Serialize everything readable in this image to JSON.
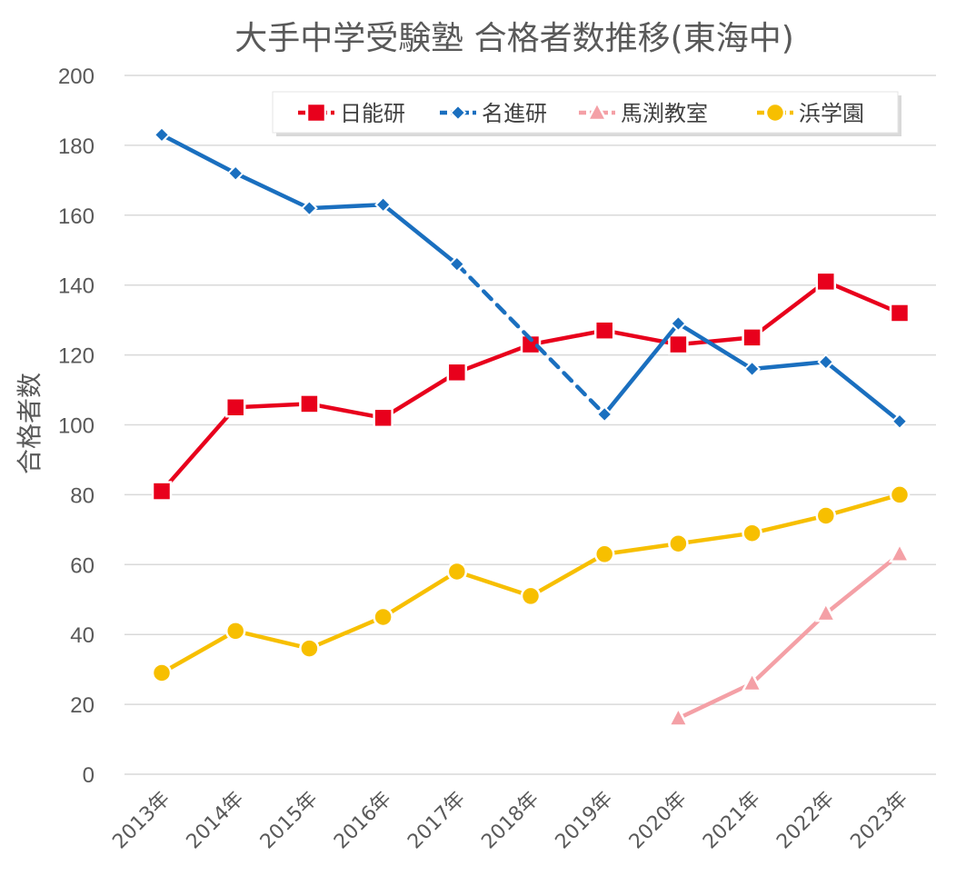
{
  "chart_data": {
    "type": "line",
    "title": "大手中学受験塾 合格者数推移(東海中)",
    "ylabel": "合格者数",
    "xlabel": "",
    "ylim": [
      0,
      200
    ],
    "ytick_step": 20,
    "grid": true,
    "legend_position": "top-right",
    "categories": [
      "2013年",
      "2014年",
      "2015年",
      "2016年",
      "2017年",
      "2018年",
      "2019年",
      "2020年",
      "2021年",
      "2022年",
      "2023年"
    ],
    "series": [
      {
        "name": "日能研",
        "color": "#e8001c",
        "marker": "square",
        "values": [
          81,
          105,
          106,
          102,
          115,
          123,
          127,
          123,
          125,
          141,
          132
        ]
      },
      {
        "name": "名進研",
        "color": "#1a6fbf",
        "marker": "diamond",
        "values": [
          183,
          172,
          162,
          163,
          146,
          null,
          103,
          129,
          116,
          118,
          101
        ],
        "dashed_segment": [
          4,
          6
        ]
      },
      {
        "name": "馬渕教室",
        "color": "#f4a0a6",
        "marker": "triangle",
        "values": [
          null,
          null,
          null,
          null,
          null,
          null,
          null,
          16,
          26,
          46,
          63
        ]
      },
      {
        "name": "浜学園",
        "color": "#f7bf00",
        "marker": "circle",
        "values": [
          29,
          41,
          36,
          45,
          58,
          51,
          63,
          66,
          69,
          74,
          80
        ]
      }
    ]
  }
}
